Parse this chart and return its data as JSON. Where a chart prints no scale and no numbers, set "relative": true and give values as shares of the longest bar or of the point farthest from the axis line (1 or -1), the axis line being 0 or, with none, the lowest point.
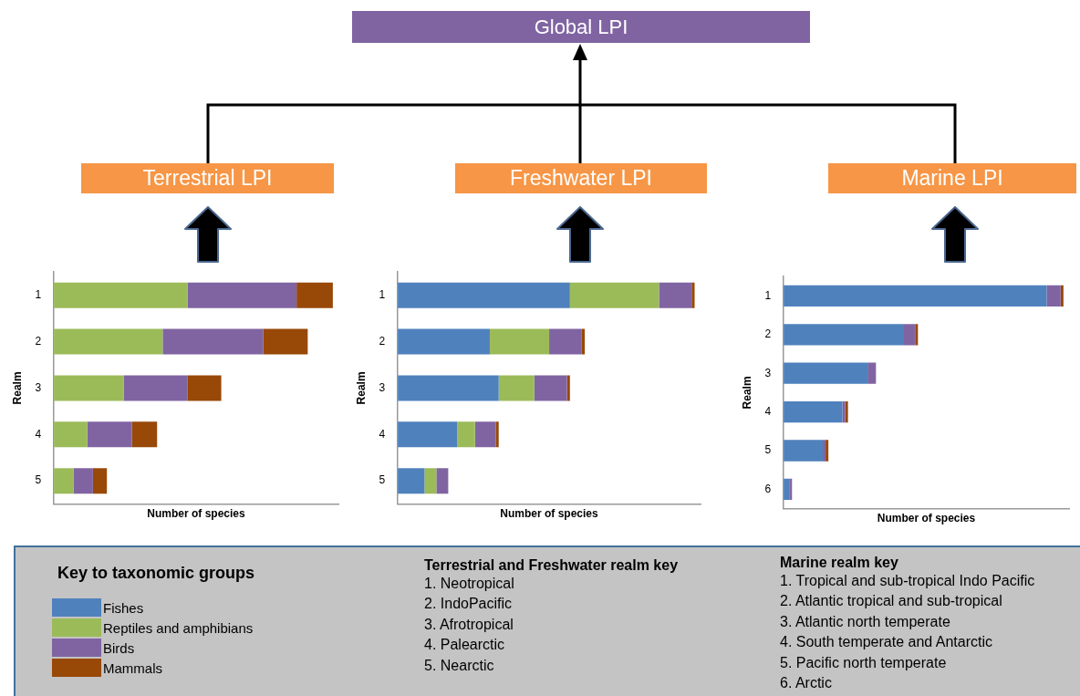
{
  "chart_data": [
    {
      "type": "other",
      "title": "Global LPI"
    },
    {
      "type": "bar",
      "title": "Terrestrial LPI",
      "orientation": "horizontal",
      "stacked": true,
      "relative": true,
      "xlabel": "Number of species",
      "ylabel": "Realm",
      "categories": [
        "1",
        "2",
        "3",
        "4",
        "5"
      ],
      "series": [
        {
          "color": "#9bbb59",
          "values": [
            0.48,
            0.39,
            0.25,
            0.12,
            0.07
          ]
        },
        {
          "color": "#8064a2",
          "values": [
            0.39,
            0.36,
            0.23,
            0.16,
            0.07
          ]
        },
        {
          "color": "#984807",
          "values": [
            0.13,
            0.16,
            0.12,
            0.09,
            0.05
          ]
        }
      ]
    },
    {
      "type": "bar",
      "title": "Freshwater LPI",
      "orientation": "horizontal",
      "stacked": true,
      "relative": true,
      "xlabel": "Number of species",
      "ylabel": "Realm",
      "legend": "bottom left",
      "legend_title": "Key to taxonomic groups",
      "categories": [
        "1",
        "2",
        "3",
        "4",
        "5"
      ],
      "series": [
        {
          "name": "Fishes",
          "color": "#4f81bd",
          "values": [
            0.58,
            0.31,
            0.34,
            0.2,
            0.09
          ]
        },
        {
          "name": "Reptiles and amphibians",
          "color": "#9bbb59",
          "values": [
            0.3,
            0.2,
            0.12,
            0.06,
            0.04
          ]
        },
        {
          "name": "Birds",
          "color": "#8064a2",
          "values": [
            0.11,
            0.11,
            0.11,
            0.07,
            0.04
          ]
        },
        {
          "name": "Mammals",
          "color": "#984807",
          "values": [
            0.01,
            0.01,
            0.01,
            0.01,
            0
          ]
        }
      ]
    },
    {
      "type": "bar",
      "title": "Marine LPI",
      "orientation": "horizontal",
      "stacked": true,
      "relative": true,
      "xlabel": "Number of species",
      "ylabel": "Realm",
      "categories": [
        "1",
        "2",
        "3",
        "4",
        "5",
        "6"
      ],
      "series": [
        {
          "color": "#4f81bd",
          "values": [
            0.94,
            0.43,
            0.3,
            0.21,
            0.14,
            0.02
          ]
        },
        {
          "color": "#8064a2",
          "values": [
            0.05,
            0.04,
            0.03,
            0.01,
            0.01,
            0.01
          ]
        },
        {
          "color": "#984807",
          "values": [
            0.01,
            0.01,
            0,
            0.01,
            0.01,
            0
          ]
        }
      ]
    },
    {
      "type": "other",
      "title": "Terrestrial and Freshwater realm key",
      "annotations": [
        "1. Neotropical",
        "2. IndoPacific",
        "3. Afrotropical",
        "4. Palearctic",
        "5. Nearctic"
      ]
    },
    {
      "type": "other",
      "title": "Marine realm key",
      "annotations": [
        "1. Tropical and sub-tropical Indo Pacific",
        "2. Atlantic tropical and sub-tropical",
        "3. Atlantic north temperate",
        "4. South temperate and Antarctic",
        "5. Pacific north temperate",
        "6. Arctic"
      ]
    }
  ]
}
